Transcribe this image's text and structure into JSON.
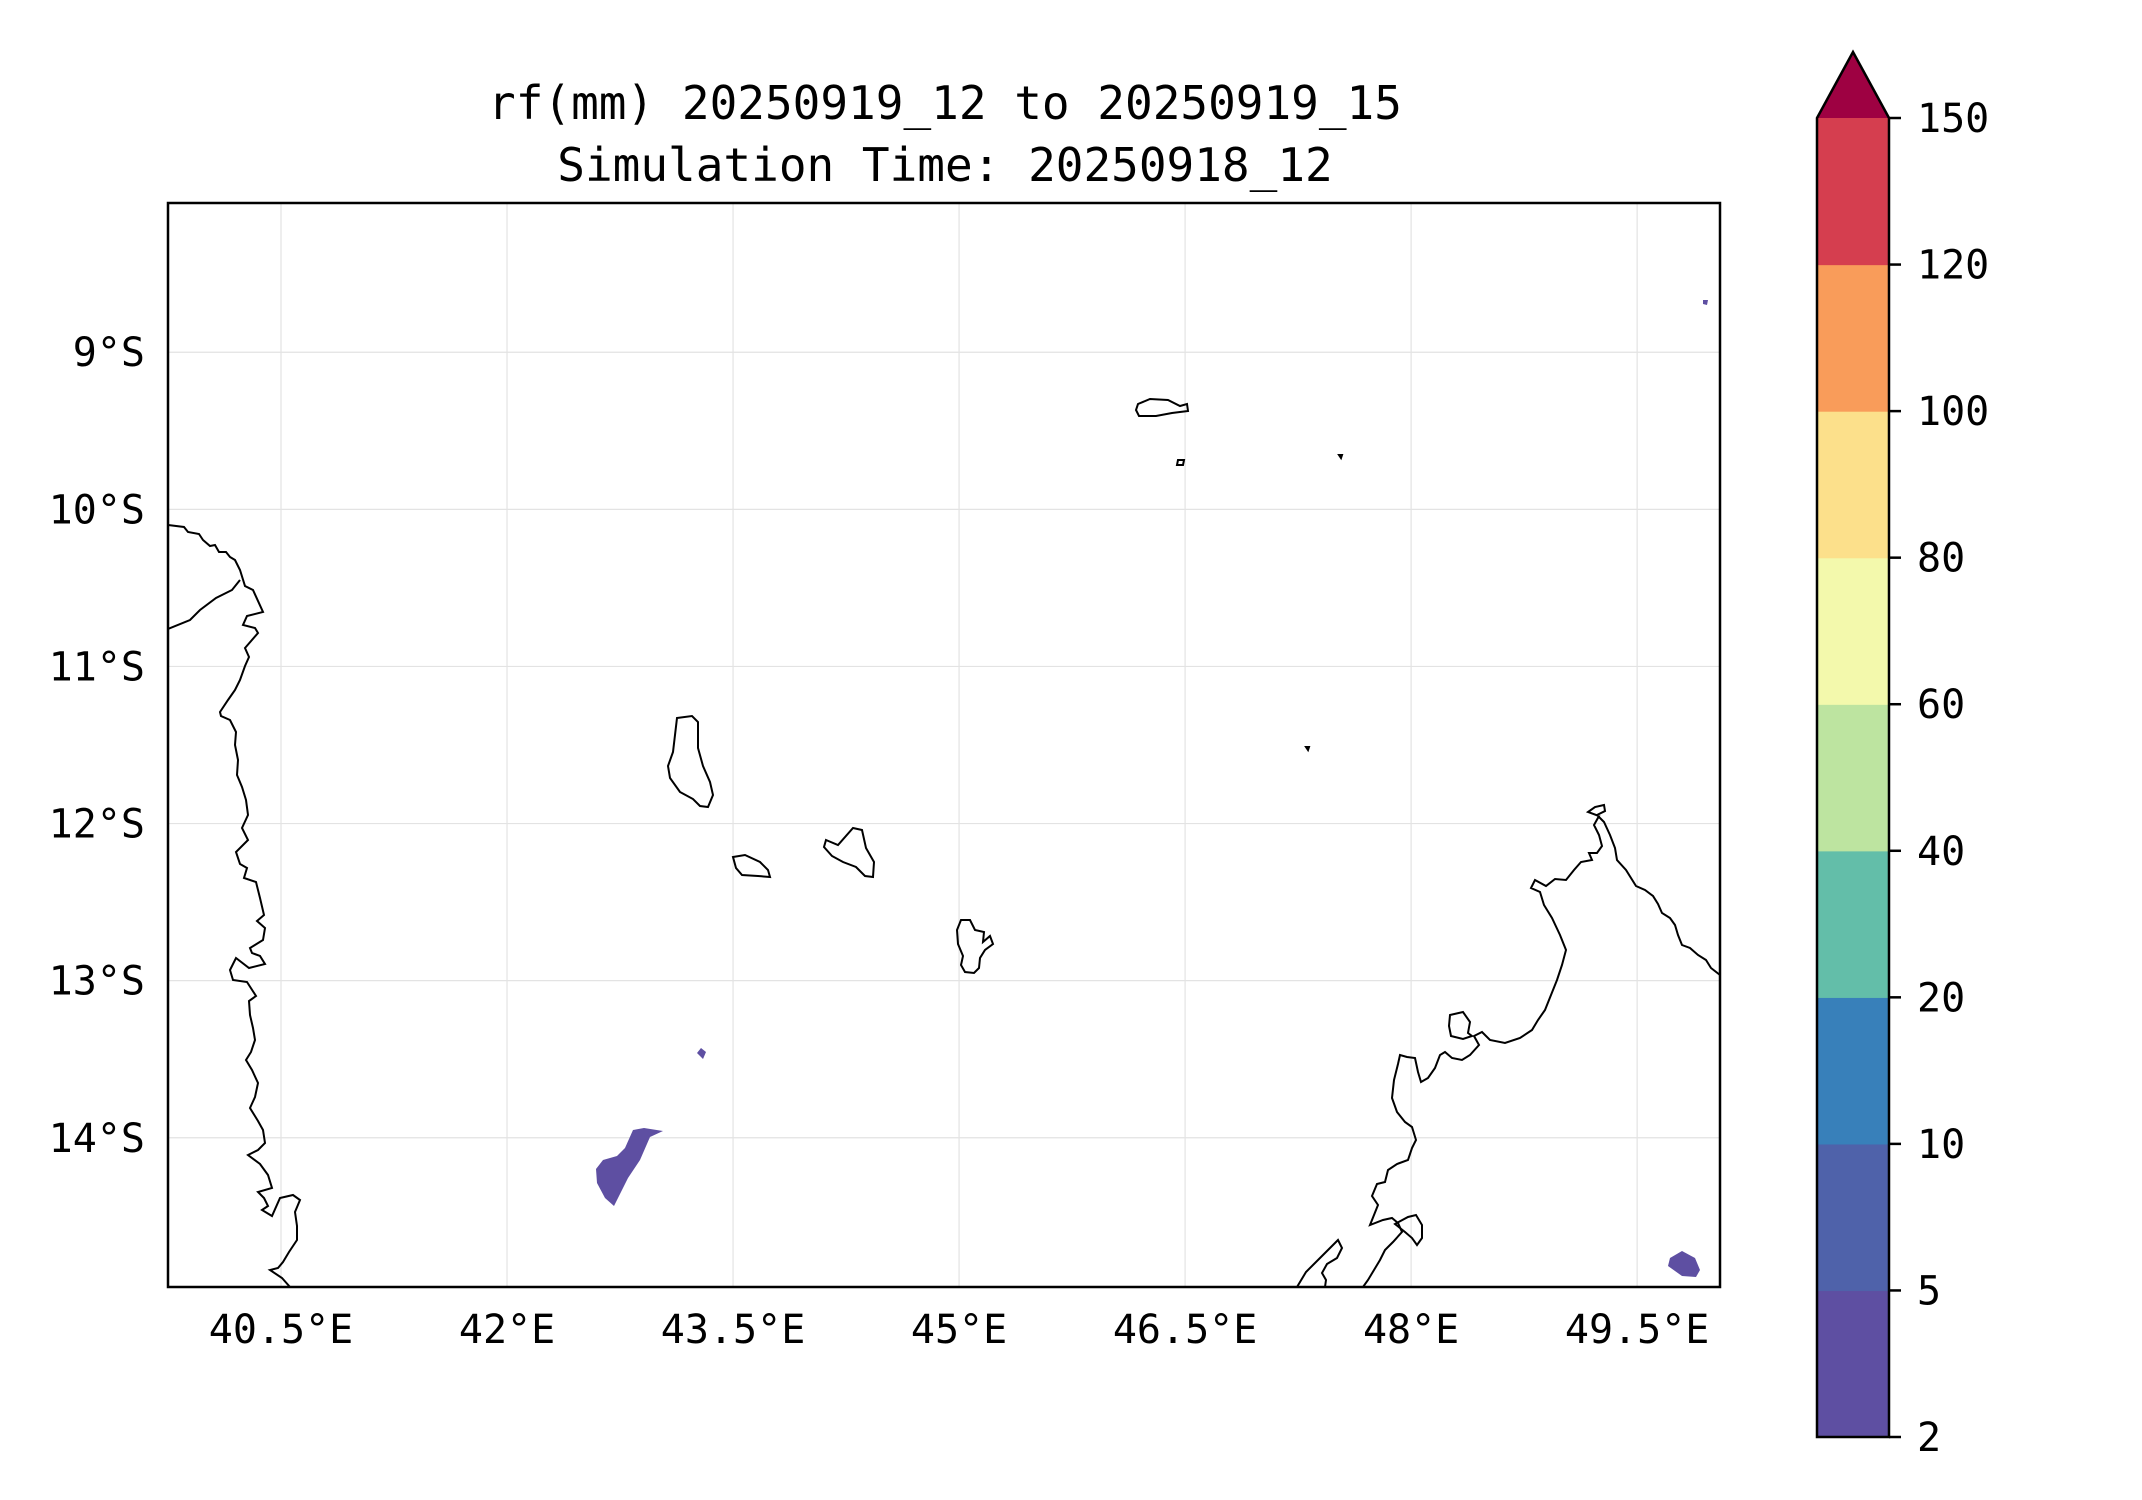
{
  "title": {
    "line1": "rf(mm) 20250919_12 to 20250919_15",
    "line2": "Simulation Time: 20250918_12"
  },
  "map": {
    "lon_range": [
      39.75,
      50.05
    ],
    "lat_range": [
      -14.95,
      -8.05
    ],
    "x_ticks": [
      {
        "value": 40.5,
        "label": "40.5°E"
      },
      {
        "value": 42.0,
        "label": "42°E"
      },
      {
        "value": 43.5,
        "label": "43.5°E"
      },
      {
        "value": 45.0,
        "label": "45°E"
      },
      {
        "value": 46.5,
        "label": "46.5°E"
      },
      {
        "value": 48.0,
        "label": "48°E"
      },
      {
        "value": 49.5,
        "label": "49.5°E"
      }
    ],
    "y_ticks": [
      {
        "value": -9,
        "label": "9°S"
      },
      {
        "value": -10,
        "label": "10°S"
      },
      {
        "value": -11,
        "label": "11°S"
      },
      {
        "value": -12,
        "label": "12°S"
      },
      {
        "value": -13,
        "label": "13°S"
      },
      {
        "value": -14,
        "label": "14°S"
      }
    ],
    "grid": true,
    "coastline_color": "#000000",
    "rain_areas": [
      {
        "level": "2-5",
        "color": "#5e4fa2"
      },
      {
        "level": "2-5",
        "color": "#5e4fa2"
      },
      {
        "level": "2-5",
        "color": "#5e4fa2"
      },
      {
        "level": "2-5",
        "color": "#5e4fa2"
      }
    ]
  },
  "colorbar": {
    "boundaries": [
      2,
      5,
      10,
      20,
      40,
      60,
      80,
      100,
      120,
      150
    ],
    "tick_labels": [
      "2",
      "5",
      "10",
      "20",
      "40",
      "60",
      "80",
      "100",
      "120",
      "150"
    ],
    "colors": [
      "#5e4fa2",
      "#4f62aa",
      "#3880ba",
      "#63bea9",
      "#bde4a0",
      "#f3f9ac",
      "#fce08b",
      "#f99c5a",
      "#d53e4f"
    ],
    "extend_color": "#9e0142",
    "extend": "max"
  }
}
